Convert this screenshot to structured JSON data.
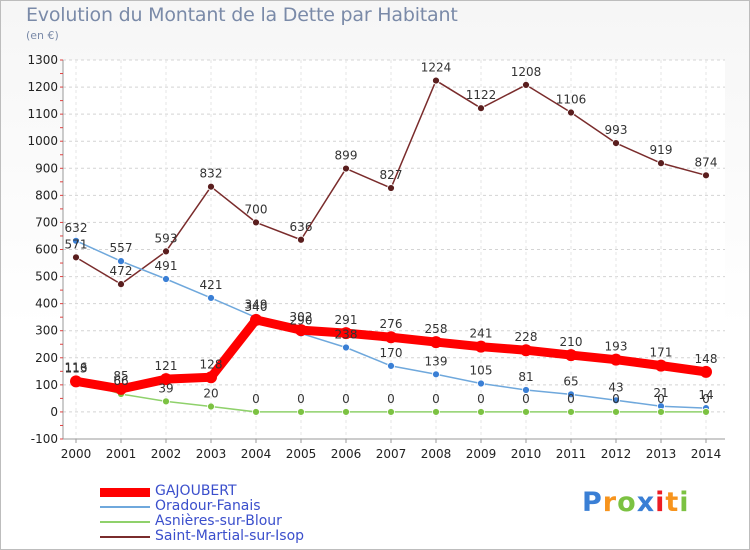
{
  "title": "Evolution du Montant de la Dette par Habitant",
  "subtitle": "(en €)",
  "logo": {
    "text": "Proxiti",
    "letter_colors": [
      "#3a7fd5",
      "#f7941d",
      "#7cc242",
      "#3a7fd5",
      "#ed1c24",
      "#f7941d",
      "#7cc242"
    ]
  },
  "chart_data": {
    "type": "line",
    "title": "Evolution du Montant de la Dette par Habitant",
    "subtitle": "(en €)",
    "x": [
      "2000",
      "2001",
      "2002",
      "2003",
      "2004",
      "2005",
      "2006",
      "2007",
      "2008",
      "2009",
      "2010",
      "2011",
      "2012",
      "2013",
      "2014"
    ],
    "ylim": [
      -100,
      1300
    ],
    "yticks": [
      -100,
      0,
      100,
      200,
      300,
      400,
      500,
      600,
      700,
      800,
      900,
      1000,
      1100,
      1200,
      1300
    ],
    "grid": "horizontal dashed",
    "legend_position": "bottom-left",
    "series": [
      {
        "name": "GAJOUBERT",
        "color": "#ff0000",
        "values": [
          113,
          85,
          121,
          128,
          340,
          302,
          291,
          276,
          258,
          241,
          228,
          210,
          193,
          171,
          148
        ],
        "labels": [
          "113",
          "85",
          "121",
          "128",
          "340",
          "302",
          "291",
          "276",
          "258",
          "241",
          "228",
          "210",
          "193",
          "171",
          "148"
        ]
      },
      {
        "name": "Oradour-Fanais",
        "color": "#6fa8dc",
        "values": [
          632,
          557,
          491,
          421,
          349,
          290,
          238,
          170,
          139,
          105,
          81,
          65,
          43,
          21,
          14
        ],
        "labels": [
          "632",
          "557",
          "491",
          "421",
          "349",
          "290",
          "238",
          "170",
          "139",
          "105",
          "81",
          "65",
          "43",
          "21",
          "14"
        ]
      },
      {
        "name": "Asnières-sur-Blour",
        "color": "#8fd16b",
        "values": [
          116,
          66,
          39,
          20,
          0,
          0,
          0,
          0,
          0,
          0,
          0,
          0,
          0,
          0,
          0
        ],
        "labels": [
          "116",
          "66",
          "39",
          "20",
          "0",
          "0",
          "0",
          "0",
          "0",
          "0",
          "0",
          "0",
          "0",
          "0",
          "0"
        ]
      },
      {
        "name": "Saint-Martial-sur-Isop",
        "color": "#7a2c2c",
        "values": [
          571,
          472,
          593,
          832,
          700,
          636,
          899,
          827,
          1224,
          1122,
          1208,
          1106,
          993,
          919,
          874
        ],
        "labels": [
          "571",
          "472",
          "593",
          "832",
          "700",
          "636",
          "899",
          "827",
          "1224",
          "1122",
          "1208",
          "1106",
          "993",
          "919",
          "874"
        ]
      }
    ]
  }
}
